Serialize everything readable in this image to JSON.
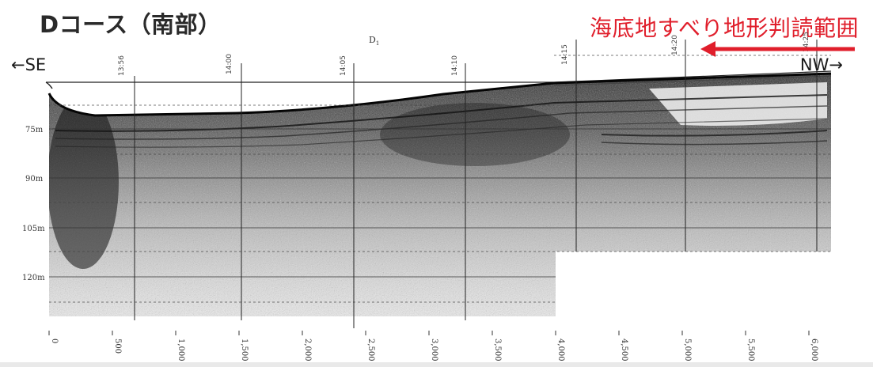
{
  "title": "Dコース（南部）",
  "annotation": {
    "text": "海底地すべり地形判読範囲",
    "color": "#e01e2b"
  },
  "directions": {
    "left": "←SE",
    "right": "NW→"
  },
  "line_label": {
    "main": "D",
    "sub": "1"
  },
  "depth_labels": [
    "75m",
    "90m",
    "105m",
    "120m"
  ],
  "distance_labels": [
    "0",
    "500",
    "1,000",
    "1,500",
    "2,000",
    "2,500",
    "3,000",
    "3,500",
    "4,000",
    "4,500",
    "5,000",
    "5,500",
    "6,000"
  ],
  "time_marks": [
    "13:56",
    "14:00",
    "14:05",
    "14:10",
    "14:15",
    "14:20",
    "14:25"
  ]
}
